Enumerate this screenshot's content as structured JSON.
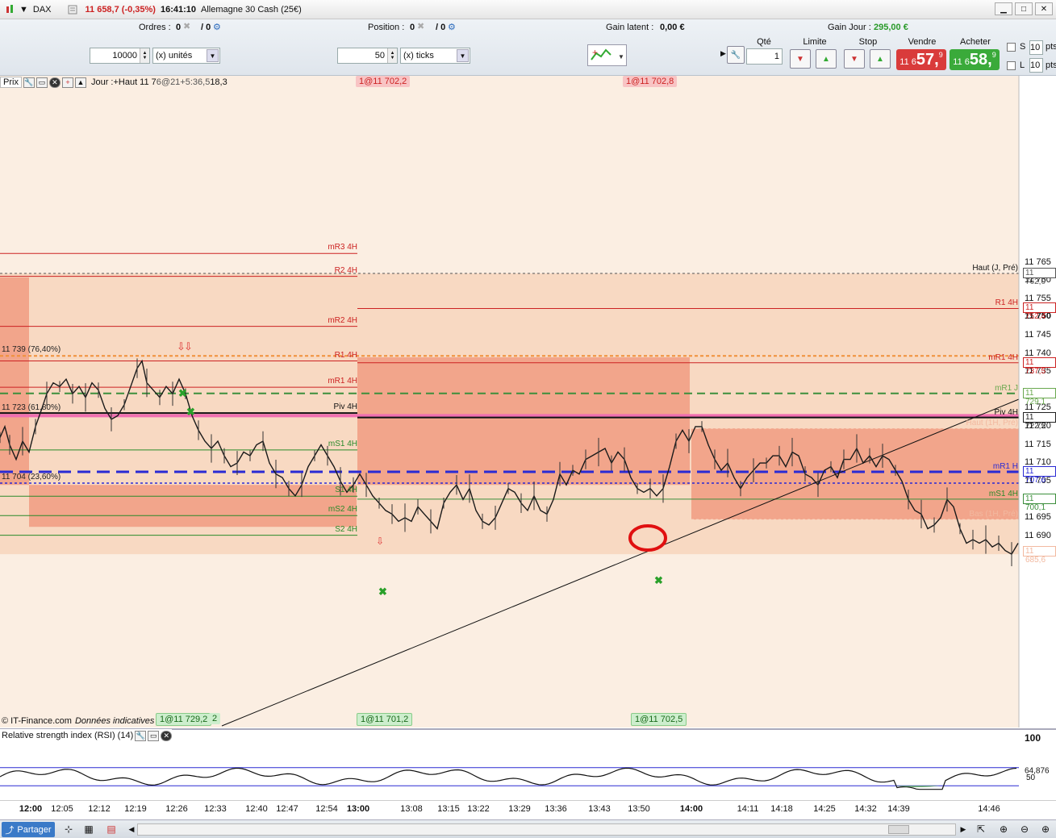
{
  "titlebar": {
    "instrument": "DAX",
    "price_change": "11 658,7 (-0,35%)",
    "time": "16:41:10",
    "name": "Allemagne 30 Cash (25€)"
  },
  "toolbar": {
    "orders_label": "Ordres :",
    "orders_value": "0",
    "orders_value2": "/ 0",
    "position_label": "Position :",
    "position_value": "0",
    "position_value2": "/ 0",
    "gain_latent_label": "Gain latent :",
    "gain_latent_value": "0,00 €",
    "gain_jour_label": "Gain Jour :",
    "gain_jour_value": "295,00 €",
    "qty_input": "10000",
    "qty_unit": "(x) unités",
    "ticks_input": "50",
    "ticks_unit": "(x) ticks",
    "qte_label": "Qté",
    "qte_value": "1",
    "limite_label": "Limite",
    "stop_label": "Stop",
    "vendre_label": "Vendre",
    "vendre_small": "11 6",
    "vendre_big": "57,",
    "vendre_sup": "9",
    "acheter_label": "Acheter",
    "acheter_small": "11 6",
    "acheter_big": "58,",
    "acheter_sup": "9",
    "s_label": "S",
    "l_label": "L",
    "pts_value": "10",
    "pts_label": "pts"
  },
  "chart": {
    "header_prix": "Prix",
    "header_text": "Jour :+Haut 11 7",
    "header_overlap": "6@21+5:36,5",
    "header_tail": "18,3",
    "copyright": "© IT-Finance.com",
    "data_note": "Données indicatives",
    "axis_ticks": [
      "11 765",
      "11 760",
      "11 755",
      "11 750",
      "11 745",
      "11 740",
      "11 735",
      "11 725",
      "11 720",
      "11 715",
      "11 710",
      "11 705",
      "11 695",
      "11 690"
    ],
    "axis_boxes": [
      {
        "text": "11 762,0",
        "color": "#555555"
      },
      {
        "text": "11 752,4",
        "color": "#cc2222"
      },
      {
        "text": "11 737,5",
        "color": "#cc2222"
      },
      {
        "text": "11 729,1",
        "color": "#6aa84f"
      },
      {
        "text": "11 722,5",
        "color": "#222222"
      },
      {
        "text": "11 707,6",
        "color": "#2a2ad4"
      },
      {
        "text": "11 700,1",
        "color": "#3c8f3c"
      },
      {
        "text": "11 685,6",
        "color": "#f2b9a0"
      }
    ],
    "levels_left": [
      {
        "text": "mR3 4H",
        "color": "#cc2222"
      },
      {
        "text": "R2 4H",
        "color": "#cc2222"
      },
      {
        "text": "mR2 4H",
        "color": "#cc2222"
      },
      {
        "text": "R1 4H",
        "color": "#cc2222"
      },
      {
        "text": "mR1 4H",
        "color": "#cc2222"
      },
      {
        "text": "Piv 4H",
        "color": "#111111"
      },
      {
        "text": "mS1 4H",
        "color": "#2a8a2a"
      },
      {
        "text": "S1 4H",
        "color": "#2a8a2a"
      },
      {
        "text": "mS2 4H",
        "color": "#2a8a2a"
      },
      {
        "text": "S2 4H",
        "color": "#2a8a2a"
      }
    ],
    "levels_right": [
      {
        "text": "Haut (J, Pré)",
        "color": "#111111"
      },
      {
        "text": "R1 4H",
        "color": "#cc2222"
      },
      {
        "text": "mR1 4H",
        "color": "#cc2222"
      },
      {
        "text": "mR1 J",
        "color": "#6aa84f"
      },
      {
        "text": "Piv 4H",
        "color": "#111111"
      },
      {
        "text": "Haut (1H, Pré)",
        "color": "#f2b9a0"
      },
      {
        "text": "mR1 H",
        "color": "#2a2ad4"
      },
      {
        "text": "mS1 4H",
        "color": "#2a8a2a"
      },
      {
        "text": "Bas (1H, Pré)",
        "color": "#f2b9a0"
      }
    ],
    "fib_labels": [
      "11 739 (76,40%)",
      "11 723 (61,80%)",
      "11 704 (23,60%)"
    ],
    "position_tags_top": [
      "1@11 702,2",
      "1@11 702,8"
    ],
    "position_tags_bottom": [
      "1@11 729,2",
      "1@11 701,2",
      "1@11 702,5"
    ],
    "bottom_tag_extra": "2"
  },
  "rsi": {
    "title": "Relative strength index (RSI) (14)",
    "value_box": "64,876",
    "level_50": "50",
    "axis_100": "100"
  },
  "timeaxis": {
    "ticks": [
      "12:00",
      "12:05",
      "12:12",
      "12:19",
      "12:26",
      "12:33",
      "12:40",
      "12:47",
      "12:54",
      "13:00",
      "13:08",
      "13:15",
      "13:22",
      "13:29",
      "13:36",
      "13:43",
      "13:50",
      "14:00",
      "14:11",
      "14:18",
      "14:25",
      "14:32",
      "14:39",
      "14:46"
    ],
    "bold": [
      "12:00",
      "13:00",
      "14:00"
    ]
  },
  "bottombar": {
    "share_label": "Partager"
  },
  "colors": {
    "zone_light": "#f8d9c2",
    "zone_strong": "#f2a58b",
    "sell": "#d93b3b",
    "buy": "#3aaa3a",
    "pivot_pink": "#f06fb1",
    "blue_dash": "#2a2ad4"
  }
}
